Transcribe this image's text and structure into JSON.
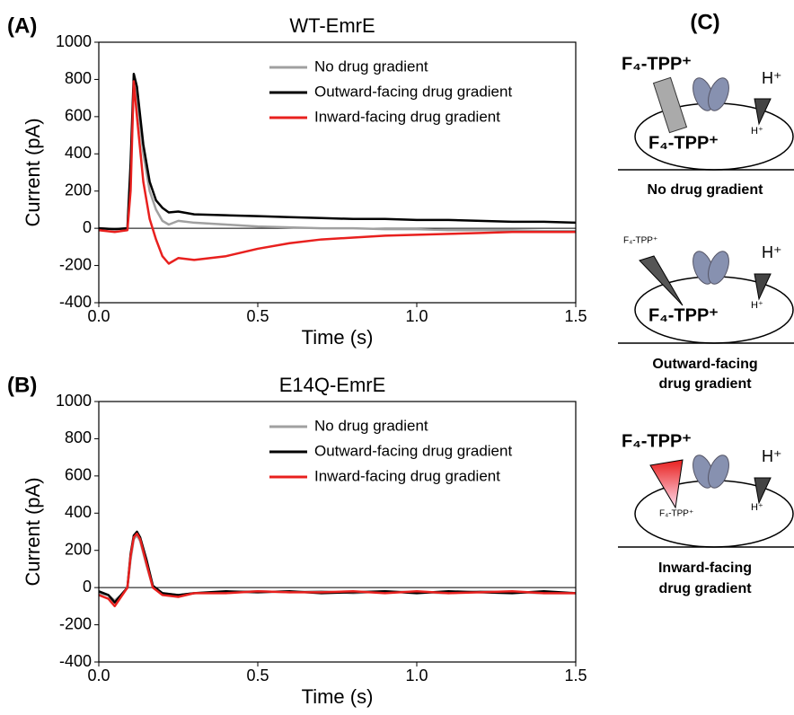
{
  "chart_data": [
    {
      "type": "line",
      "panel_label": "(A)",
      "title": "WT-EmrE",
      "xlabel": "Time (s)",
      "ylabel": "Current (pA)",
      "x": [
        0,
        0.05,
        0.09,
        0.1,
        0.11,
        0.12,
        0.14,
        0.16,
        0.18,
        0.2,
        0.22,
        0.25,
        0.3,
        0.4,
        0.5,
        0.6,
        0.7,
        0.8,
        0.9,
        1.0,
        1.1,
        1.2,
        1.3,
        1.4,
        1.5
      ],
      "series": [
        {
          "name": "No drug gradient",
          "color": "#a0a0a0",
          "values": [
            0,
            -5,
            0,
            300,
            780,
            700,
            400,
            200,
            100,
            40,
            20,
            40,
            30,
            20,
            10,
            5,
            0,
            0,
            -5,
            -5,
            -10,
            -10,
            -10,
            -15,
            -15
          ]
        },
        {
          "name": "Outward-facing drug gradient",
          "color": "#000000",
          "values": [
            0,
            -5,
            0,
            350,
            830,
            760,
            450,
            250,
            150,
            110,
            85,
            90,
            75,
            70,
            65,
            60,
            55,
            50,
            50,
            45,
            45,
            40,
            35,
            35,
            30
          ]
        },
        {
          "name": "Inward-facing drug gradient",
          "color": "#e8201e",
          "values": [
            -10,
            -20,
            -10,
            200,
            790,
            600,
            250,
            50,
            -60,
            -150,
            -190,
            -160,
            -170,
            -150,
            -110,
            -80,
            -60,
            -50,
            -40,
            -35,
            -30,
            -25,
            -20,
            -20,
            -20
          ]
        }
      ],
      "xlim": [
        0,
        1.5
      ],
      "xticks": [
        {
          "value": 0,
          "label": "0.0"
        },
        0.5,
        {
          "value": 1,
          "label": "1.0"
        },
        1.5
      ],
      "ylim": [
        -400,
        1000
      ],
      "yticks": [
        -400,
        -200,
        0,
        200,
        400,
        600,
        800,
        1000
      ],
      "zero_line": true,
      "legend": "upper right"
    },
    {
      "type": "line",
      "panel_label": "(B)",
      "title": "E14Q-EmrE",
      "xlabel": "Time (s)",
      "ylabel": "Current (pA)",
      "x": [
        0,
        0.03,
        0.05,
        0.07,
        0.09,
        0.1,
        0.11,
        0.12,
        0.13,
        0.15,
        0.17,
        0.2,
        0.25,
        0.3,
        0.4,
        0.5,
        0.6,
        0.7,
        0.8,
        0.9,
        1.0,
        1.1,
        1.2,
        1.3,
        1.4,
        1.5
      ],
      "series": [
        {
          "name": "No drug gradient",
          "color": "#a0a0a0",
          "values": [
            -30,
            -40,
            -70,
            -40,
            0,
            150,
            260,
            280,
            250,
            120,
            0,
            -30,
            -40,
            -30,
            -25,
            -20,
            -25,
            -20,
            -30,
            -20,
            -25,
            -30,
            -20,
            -25,
            -30,
            -30
          ]
        },
        {
          "name": "Outward-facing drug gradient",
          "color": "#000000",
          "values": [
            -20,
            -40,
            -80,
            -40,
            0,
            180,
            280,
            300,
            270,
            150,
            10,
            -30,
            -40,
            -30,
            -20,
            -25,
            -20,
            -30,
            -25,
            -20,
            -30,
            -20,
            -25,
            -30,
            -20,
            -30
          ]
        },
        {
          "name": "Inward-facing drug gradient",
          "color": "#e8201e",
          "values": [
            -40,
            -60,
            -100,
            -50,
            0,
            170,
            270,
            290,
            260,
            130,
            0,
            -40,
            -50,
            -30,
            -30,
            -20,
            -25,
            -25,
            -20,
            -30,
            -20,
            -30,
            -25,
            -20,
            -30,
            -30
          ]
        }
      ],
      "xlim": [
        0,
        1.5
      ],
      "xticks": [
        {
          "value": 0,
          "label": "0.0"
        },
        0.5,
        {
          "value": 1,
          "label": "1.0"
        },
        1.5
      ],
      "ylim": [
        -400,
        1000
      ],
      "yticks": [
        -400,
        -200,
        0,
        200,
        400,
        600,
        800,
        1000
      ],
      "zero_line": true,
      "legend": "upper right"
    }
  ],
  "panel_c": {
    "label": "(C)",
    "diagrams": [
      {
        "outside": "F₄-TPP⁺",
        "inside": "F₄-TPP⁺",
        "h_out": "H⁺",
        "h_in": "H⁺",
        "caption": [
          "No drug gradient"
        ]
      },
      {
        "outside": "F₄-TPP⁺",
        "inside": "F₄-TPP⁺",
        "h_out": "H⁺",
        "h_in": "H⁺",
        "caption": [
          "Outward-facing",
          "drug gradient"
        ]
      },
      {
        "outside": "F₄-TPP⁺",
        "inside": "F₄-TPP⁺",
        "h_out": "H⁺",
        "h_in": "H⁺",
        "caption": [
          "Inward-facing",
          "drug gradient"
        ]
      }
    ]
  }
}
